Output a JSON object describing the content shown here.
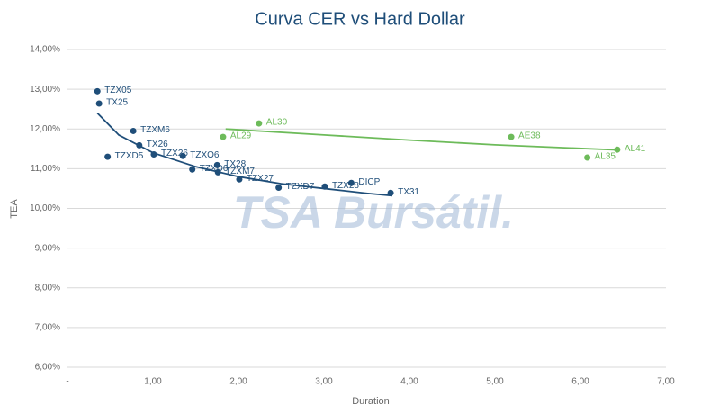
{
  "chart_data": {
    "type": "scatter",
    "title": "Curva CER vs Hard Dollar",
    "x_label": "Duration",
    "y_label": "TEA",
    "watermark": "TSA Bursátil.",
    "xlim": [
      0,
      7
    ],
    "xticks": [
      {
        "value": 0,
        "label": "-"
      },
      {
        "value": 1,
        "label": "1,00"
      },
      {
        "value": 2,
        "label": "2,00"
      },
      {
        "value": 3,
        "label": "3,00"
      },
      {
        "value": 4,
        "label": "4,00"
      },
      {
        "value": 5,
        "label": "5,00"
      },
      {
        "value": 6,
        "label": "6,00"
      },
      {
        "value": 7,
        "label": "7,00"
      }
    ],
    "ylim": [
      6,
      14
    ],
    "yticks": [
      {
        "value": 6,
        "label": "6,00%"
      },
      {
        "value": 7,
        "label": "7,00%"
      },
      {
        "value": 8,
        "label": "8,00%"
      },
      {
        "value": 9,
        "label": "9,00%"
      },
      {
        "value": 10,
        "label": "10,00%"
      },
      {
        "value": 11,
        "label": "11,00%"
      },
      {
        "value": 12,
        "label": "12,00%"
      },
      {
        "value": 13,
        "label": "13,00%"
      },
      {
        "value": 14,
        "label": "14,00%"
      }
    ],
    "grid": true,
    "series": [
      {
        "color": "#1f4e79",
        "labels": [
          "TZX05",
          "TX25",
          "TZXM6",
          "TX26",
          "TZXD5",
          "TZX26",
          "TZXO6",
          "TZXD6",
          "TX28",
          "TZXM7",
          "TZX27",
          "TZXD7",
          "TZX28",
          "DICP",
          "TX31"
        ],
        "x": [
          0.35,
          0.37,
          0.77,
          0.84,
          0.47,
          1.01,
          1.35,
          1.46,
          1.75,
          1.76,
          2.01,
          2.47,
          3.01,
          3.32,
          3.78
        ],
        "values": [
          12.95,
          12.64,
          11.95,
          11.59,
          11.3,
          11.36,
          11.32,
          10.98,
          11.09,
          10.91,
          10.73,
          10.52,
          10.55,
          10.64,
          10.39
        ]
      },
      {
        "color": "#6dbb5a",
        "labels": [
          "AL30",
          "AL29",
          "AE38",
          "AL35",
          "AL41"
        ],
        "x": [
          2.24,
          1.82,
          5.19,
          6.08,
          6.43
        ],
        "values": [
          12.14,
          11.8,
          11.8,
          11.28,
          11.48
        ]
      }
    ],
    "trendlines": [
      {
        "color": "#1f4e79",
        "x": [
          0.35,
          0.6,
          1,
          1.5,
          2,
          2.5,
          3,
          3.5,
          3.8
        ],
        "values": [
          12.4,
          11.85,
          11.4,
          11.05,
          10.8,
          10.62,
          10.5,
          10.38,
          10.32
        ]
      },
      {
        "color": "#6dbb5a",
        "x": [
          1.85,
          3,
          4,
          5,
          6.45
        ],
        "values": [
          12.0,
          11.85,
          11.72,
          11.6,
          11.47
        ]
      }
    ]
  }
}
